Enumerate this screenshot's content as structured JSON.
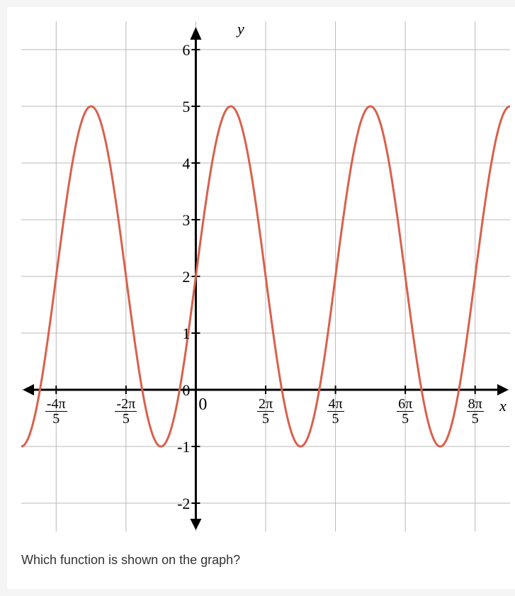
{
  "chart": {
    "type": "line",
    "title_y": "y",
    "title_x": "x",
    "curve_color": "#d9604c",
    "curve_width": 3,
    "grid_color": "#b8b8b8",
    "grid_width": 1,
    "axis_color": "#000000",
    "axis_width": 3,
    "background_color": "#ffffff",
    "y_ticks": [
      -2,
      -1,
      0,
      1,
      2,
      3,
      4,
      5,
      6
    ],
    "y_tick_labels": [
      "-2",
      "-1",
      "0",
      "1",
      "2",
      "3",
      "4",
      "5",
      "6"
    ],
    "x_tick_values": [
      -0.8,
      -0.4,
      0,
      0.4,
      0.8,
      1.2,
      1.6
    ],
    "x_tick_labels": [
      {
        "num": "-4π",
        "den": "5"
      },
      {
        "num": "-2π",
        "den": "5"
      },
      {
        "num": "0",
        "den": ""
      },
      {
        "num": "2π",
        "den": "5"
      },
      {
        "num": "4π",
        "den": "5"
      },
      {
        "num": "6π",
        "den": "5"
      },
      {
        "num": "8π",
        "den": "5"
      }
    ],
    "function": {
      "amplitude": 3,
      "vertical_shift": 2,
      "period": 0.8,
      "y_intercept": 2,
      "max_value": 5,
      "min_value": -1
    },
    "plot_x_min": -1.0,
    "plot_x_max": 1.8,
    "plot_y_min": -2.5,
    "plot_y_max": 6.5
  },
  "question": "Which function is shown on the graph?",
  "origin_label": "0"
}
